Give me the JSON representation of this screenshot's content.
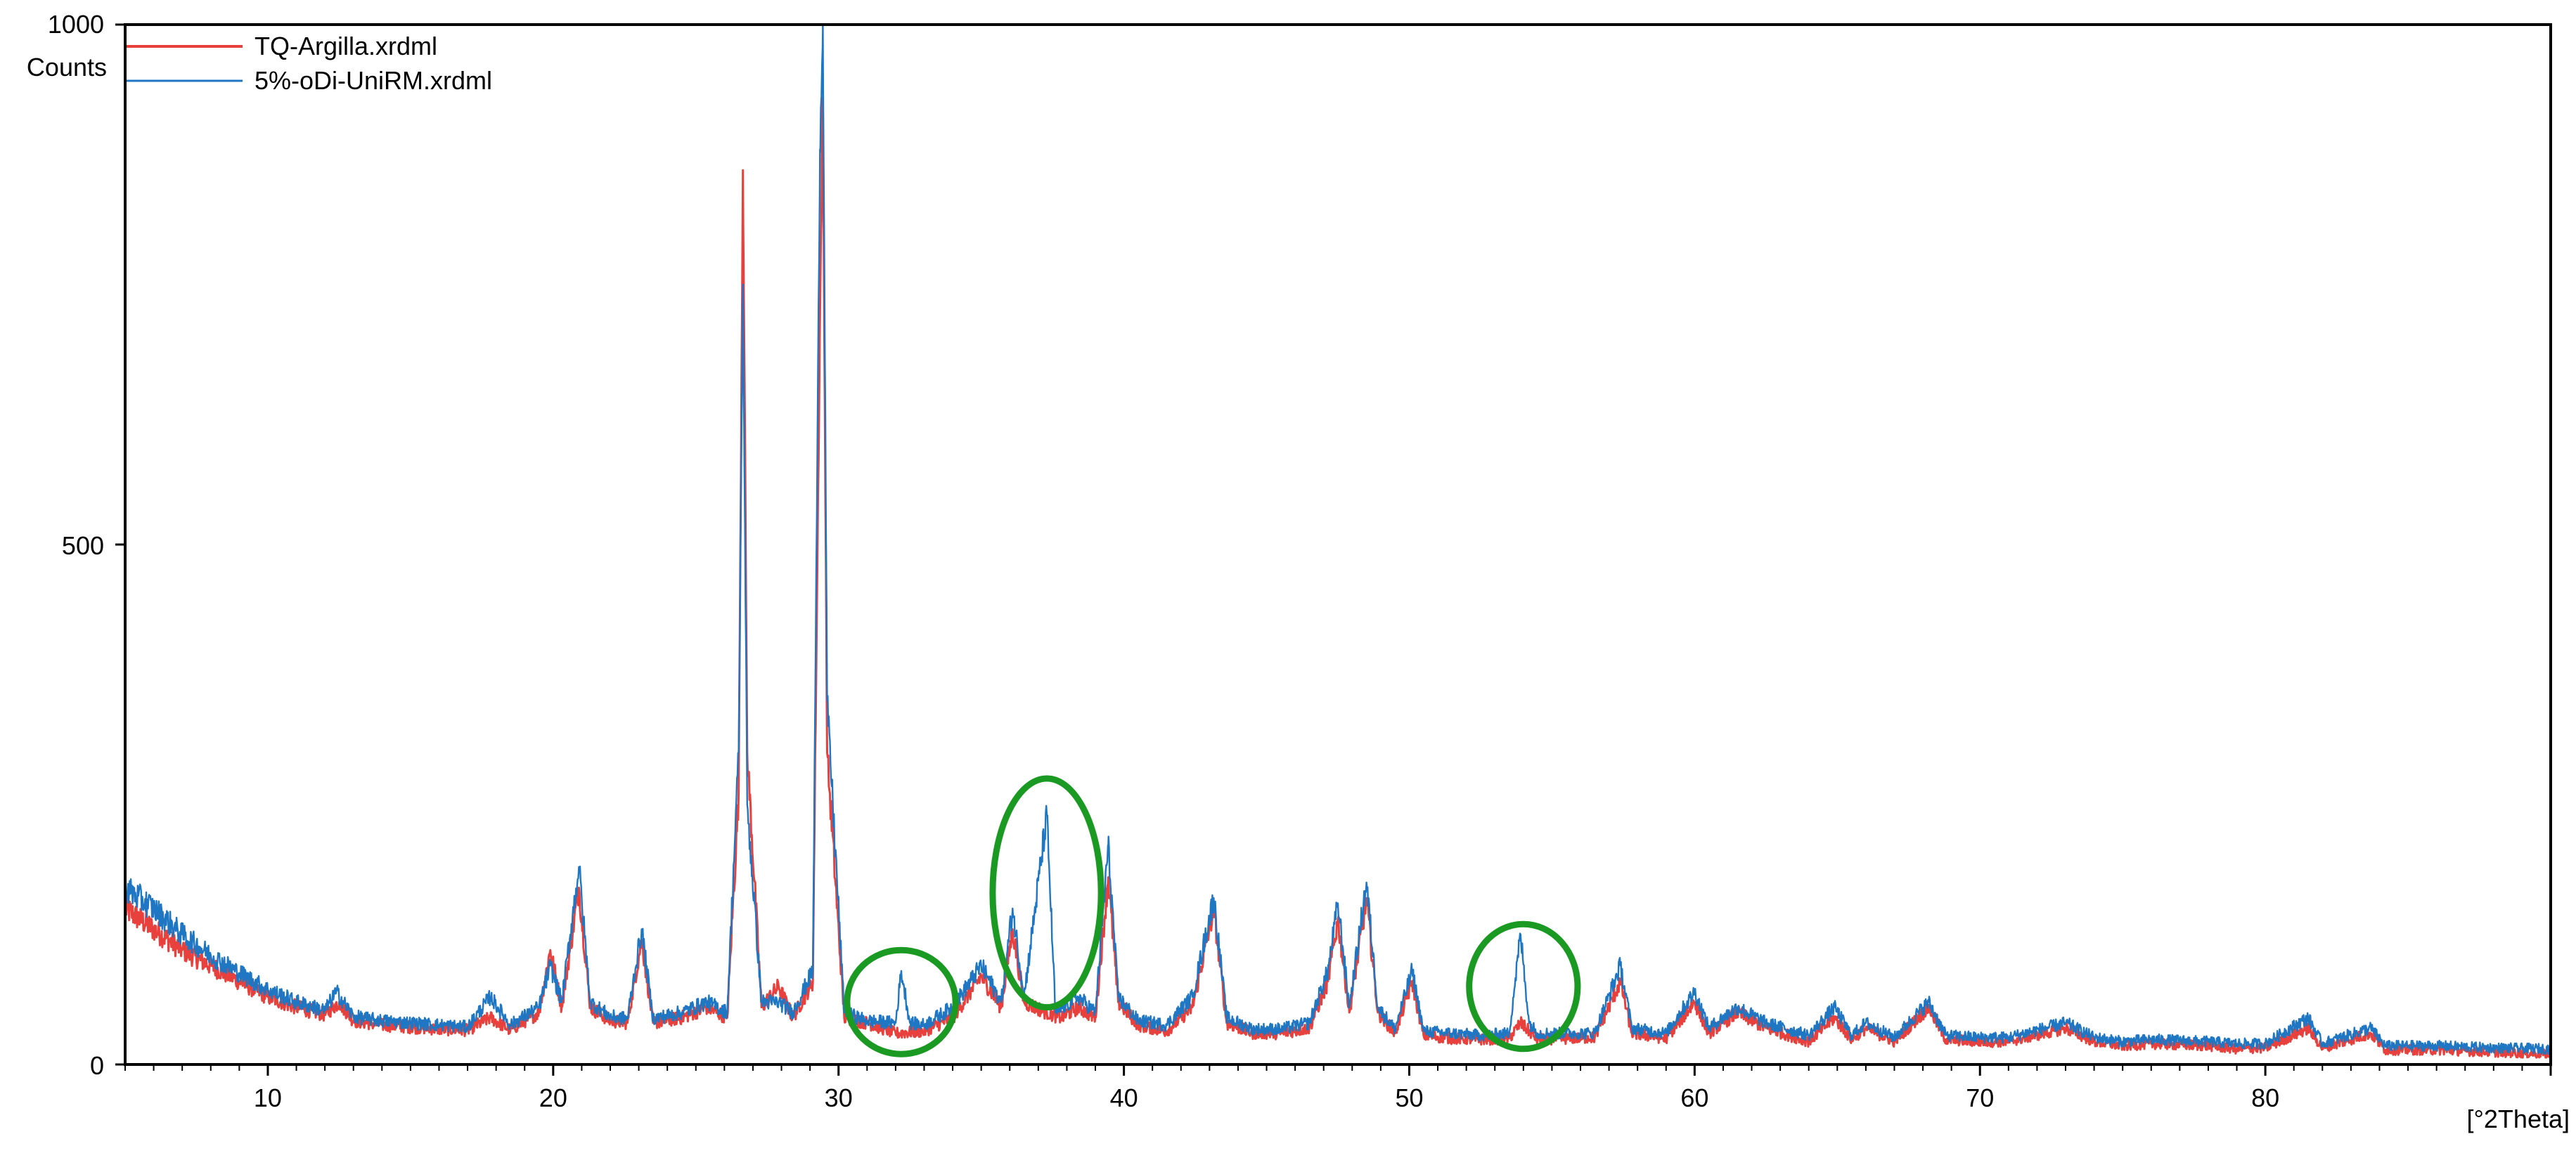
{
  "chart_data": {
    "type": "line",
    "title": "",
    "xlabel": "[°2Theta]",
    "ylabel": "Counts",
    "xlim": [
      5,
      90
    ],
    "ylim": [
      0,
      1000
    ],
    "x_ticks": [
      10,
      20,
      30,
      40,
      50,
      60,
      70,
      80
    ],
    "x_tick_labels": [
      "10",
      "20",
      "30",
      "40",
      "50",
      "60",
      "70",
      "80"
    ],
    "y_ticks": [
      0,
      500,
      1000
    ],
    "y_tick_labels": [
      "0",
      "500",
      "1000"
    ],
    "grid": false,
    "legend_position": "top-left",
    "series": [
      {
        "name": "TQ-Argilla.xrdml",
        "color": "#e8403c",
        "points": [
          [
            5,
            150
          ],
          [
            6,
            130
          ],
          [
            7,
            110
          ],
          [
            8,
            95
          ],
          [
            9,
            80
          ],
          [
            10,
            65
          ],
          [
            11,
            55
          ],
          [
            12,
            48
          ],
          [
            12.5,
            60
          ],
          [
            13,
            42
          ],
          [
            14,
            38
          ],
          [
            15,
            36
          ],
          [
            16,
            34
          ],
          [
            17,
            33
          ],
          [
            17.8,
            45
          ],
          [
            18.5,
            33
          ],
          [
            19.5,
            50
          ],
          [
            19.9,
            110
          ],
          [
            20.3,
            55
          ],
          [
            20.9,
            170
          ],
          [
            21.3,
            55
          ],
          [
            22,
            42
          ],
          [
            22.6,
            40
          ],
          [
            23.1,
            120
          ],
          [
            23.5,
            40
          ],
          [
            24.5,
            45
          ],
          [
            25.4,
            55
          ],
          [
            26.1,
            45
          ],
          [
            26.5,
            260
          ],
          [
            26.65,
            860
          ],
          [
            26.8,
            300
          ],
          [
            27.3,
            55
          ],
          [
            27.9,
            75
          ],
          [
            28.4,
            45
          ],
          [
            29.1,
            80
          ],
          [
            29.35,
            720
          ],
          [
            29.45,
            930
          ],
          [
            29.6,
            300
          ],
          [
            30.2,
            45
          ],
          [
            31,
            40
          ],
          [
            32,
            30
          ],
          [
            33,
            32
          ],
          [
            34,
            45
          ],
          [
            35,
            85
          ],
          [
            35.7,
            55
          ],
          [
            36.1,
            130
          ],
          [
            36.5,
            60
          ],
          [
            37.3,
            50
          ],
          [
            37.8,
            45
          ],
          [
            38.4,
            55
          ],
          [
            39,
            45
          ],
          [
            39.45,
            180
          ],
          [
            39.8,
            60
          ],
          [
            40.5,
            38
          ],
          [
            41.5,
            32
          ],
          [
            42.4,
            55
          ],
          [
            43.15,
            150
          ],
          [
            43.6,
            40
          ],
          [
            44.5,
            30
          ],
          [
            45.5,
            30
          ],
          [
            46.5,
            35
          ],
          [
            47.15,
            80
          ],
          [
            47.5,
            140
          ],
          [
            47.9,
            50
          ],
          [
            48.5,
            160
          ],
          [
            48.9,
            50
          ],
          [
            49.5,
            30
          ],
          [
            50.1,
            80
          ],
          [
            50.5,
            28
          ],
          [
            51.5,
            25
          ],
          [
            52.5,
            24
          ],
          [
            53.5,
            25
          ],
          [
            53.9,
            40
          ],
          [
            54.5,
            24
          ],
          [
            55.5,
            25
          ],
          [
            56.5,
            26
          ],
          [
            57.4,
            80
          ],
          [
            57.8,
            30
          ],
          [
            59,
            25
          ],
          [
            60,
            60
          ],
          [
            60.5,
            30
          ],
          [
            61.5,
            50
          ],
          [
            62.5,
            35
          ],
          [
            64,
            22
          ],
          [
            64.9,
            45
          ],
          [
            65.5,
            24
          ],
          [
            66,
            35
          ],
          [
            67,
            22
          ],
          [
            68.2,
            55
          ],
          [
            68.8,
            24
          ],
          [
            70,
            22
          ],
          [
            71,
            22
          ],
          [
            73,
            35
          ],
          [
            74,
            22
          ],
          [
            75,
            18
          ],
          [
            76,
            20
          ],
          [
            78,
            18
          ],
          [
            79,
            15
          ],
          [
            80,
            16
          ],
          [
            81.5,
            35
          ],
          [
            82,
            16
          ],
          [
            83.7,
            30
          ],
          [
            84.2,
            14
          ],
          [
            86,
            14
          ],
          [
            88,
            12
          ],
          [
            90,
            10
          ]
        ]
      },
      {
        "name": "5%-oDi-UniRM.xrdml",
        "color": "#1f77c4",
        "points": [
          [
            5,
            170
          ],
          [
            6,
            150
          ],
          [
            7,
            125
          ],
          [
            8,
            105
          ],
          [
            9,
            88
          ],
          [
            10,
            72
          ],
          [
            11,
            60
          ],
          [
            12,
            52
          ],
          [
            12.4,
            70
          ],
          [
            13,
            46
          ],
          [
            14,
            42
          ],
          [
            15,
            40
          ],
          [
            16,
            38
          ],
          [
            17,
            36
          ],
          [
            17.8,
            65
          ],
          [
            18.5,
            38
          ],
          [
            19.5,
            55
          ],
          [
            19.9,
            95
          ],
          [
            20.3,
            60
          ],
          [
            20.9,
            190
          ],
          [
            21.3,
            60
          ],
          [
            22,
            46
          ],
          [
            22.6,
            44
          ],
          [
            23.1,
            130
          ],
          [
            23.5,
            44
          ],
          [
            24.5,
            50
          ],
          [
            25.4,
            60
          ],
          [
            26.1,
            50
          ],
          [
            26.5,
            300
          ],
          [
            26.65,
            750
          ],
          [
            26.8,
            250
          ],
          [
            27.3,
            60
          ],
          [
            27.9,
            60
          ],
          [
            28.4,
            50
          ],
          [
            29.1,
            90
          ],
          [
            29.35,
            880
          ],
          [
            29.45,
            1000
          ],
          [
            29.6,
            350
          ],
          [
            30.2,
            50
          ],
          [
            31,
            42
          ],
          [
            32,
            40
          ],
          [
            32.2,
            90
          ],
          [
            32.5,
            40
          ],
          [
            33,
            38
          ],
          [
            34,
            55
          ],
          [
            35,
            95
          ],
          [
            35.7,
            60
          ],
          [
            36.1,
            150
          ],
          [
            36.5,
            65
          ],
          [
            37.3,
            240
          ],
          [
            37.6,
            50
          ],
          [
            38.4,
            65
          ],
          [
            39,
            50
          ],
          [
            39.45,
            210
          ],
          [
            39.8,
            65
          ],
          [
            40.5,
            42
          ],
          [
            41.5,
            38
          ],
          [
            42.4,
            65
          ],
          [
            43.15,
            160
          ],
          [
            43.6,
            45
          ],
          [
            44.5,
            34
          ],
          [
            45.5,
            34
          ],
          [
            46.5,
            40
          ],
          [
            47.15,
            90
          ],
          [
            47.5,
            155
          ],
          [
            47.9,
            55
          ],
          [
            48.5,
            175
          ],
          [
            48.9,
            55
          ],
          [
            49.5,
            34
          ],
          [
            50.1,
            90
          ],
          [
            50.5,
            32
          ],
          [
            51.5,
            30
          ],
          [
            52.5,
            28
          ],
          [
            53.5,
            30
          ],
          [
            53.9,
            125
          ],
          [
            54.2,
            40
          ],
          [
            54.5,
            30
          ],
          [
            55.5,
            30
          ],
          [
            56.5,
            30
          ],
          [
            57.4,
            95
          ],
          [
            57.8,
            35
          ],
          [
            59,
            30
          ],
          [
            60,
            70
          ],
          [
            60.5,
            35
          ],
          [
            61.5,
            55
          ],
          [
            62.5,
            40
          ],
          [
            64,
            28
          ],
          [
            64.9,
            55
          ],
          [
            65.5,
            28
          ],
          [
            66,
            40
          ],
          [
            67,
            26
          ],
          [
            68.2,
            60
          ],
          [
            68.8,
            28
          ],
          [
            70,
            26
          ],
          [
            71,
            26
          ],
          [
            73,
            40
          ],
          [
            74,
            26
          ],
          [
            75,
            22
          ],
          [
            76,
            24
          ],
          [
            78,
            22
          ],
          [
            79,
            20
          ],
          [
            80,
            20
          ],
          [
            81.5,
            45
          ],
          [
            82,
            20
          ],
          [
            83.7,
            35
          ],
          [
            84.2,
            18
          ],
          [
            86,
            18
          ],
          [
            88,
            16
          ],
          [
            90,
            15
          ]
        ]
      }
    ],
    "annotations": [
      {
        "shape": "ellipse",
        "color": "#1a9a22",
        "x": 32.2,
        "y": 60,
        "rx_data": 1.9,
        "ry_data": 50
      },
      {
        "shape": "ellipse",
        "color": "#1a9a22",
        "x": 37.3,
        "y": 165,
        "rx_data": 1.9,
        "ry_data": 110
      },
      {
        "shape": "ellipse",
        "color": "#1a9a22",
        "x": 54.0,
        "y": 75,
        "rx_data": 1.9,
        "ry_data": 60
      }
    ]
  }
}
